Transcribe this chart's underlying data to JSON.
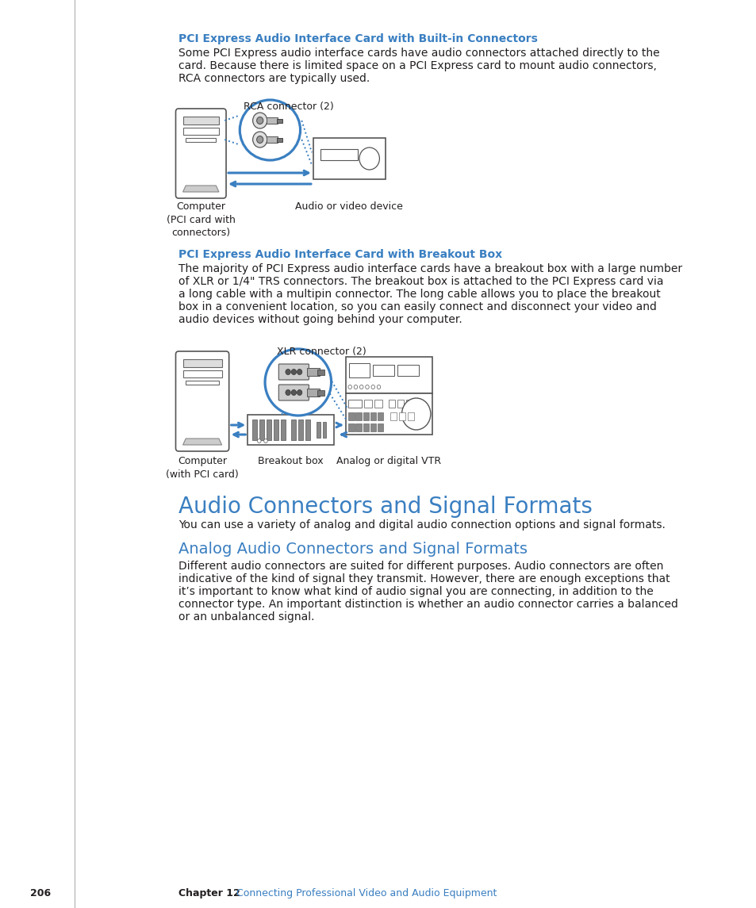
{
  "background_color": "#ffffff",
  "blue_color": "#3A7FC1",
  "dark_blue_heading": "#3A7FC1",
  "text_color": "#231f20",
  "gray_color": "#808080",
  "section1_heading": "PCI Express Audio Interface Card with Built-in Connectors",
  "section1_body_lines": [
    "Some PCI Express audio interface cards have audio connectors attached directly to the",
    "card. Because there is limited space on a PCI Express card to mount audio connectors,",
    "RCA connectors are typically used."
  ],
  "section2_heading": "PCI Express Audio Interface Card with Breakout Box",
  "section2_body_lines": [
    "The majority of PCI Express audio interface cards have a breakout box with a large number",
    "of XLR or 1/4\" TRS connectors. The breakout box is attached to the PCI Express card via",
    "a long cable with a multipin connector. The long cable allows you to place the breakout",
    "box in a convenient location, so you can easily connect and disconnect your video and",
    "audio devices without going behind your computer."
  ],
  "section3_heading": "Audio Connectors and Signal Formats",
  "section3_body": "You can use a variety of analog and digital audio connection options and signal formats.",
  "section4_heading": "Analog Audio Connectors and Signal Formats",
  "section4_body_lines": [
    "Different audio connectors are suited for different purposes. Audio connectors are often",
    "indicative of the kind of signal they transmit. However, there are enough exceptions that",
    "it’s important to know what kind of audio signal you are connecting, in addition to the",
    "connector type. An important distinction is whether an audio connector carries a balanced",
    "or an unbalanced signal."
  ],
  "footer_page": "206",
  "footer_chapter": "Chapter 12",
  "footer_text": "   Connecting Professional Video and Audio Equipment",
  "diagram1_label_rca": "RCA connector (2)",
  "diagram1_label_computer": "Computer\n(PCI card with\nconnectors)",
  "diagram1_label_device": "Audio or video device",
  "diagram2_label_xlr": "XLR connector (2)",
  "diagram2_label_computer": "Computer\n(with PCI card)",
  "diagram2_label_breakout": "Breakout box",
  "diagram2_label_vtr": "Analog or digital VTR"
}
